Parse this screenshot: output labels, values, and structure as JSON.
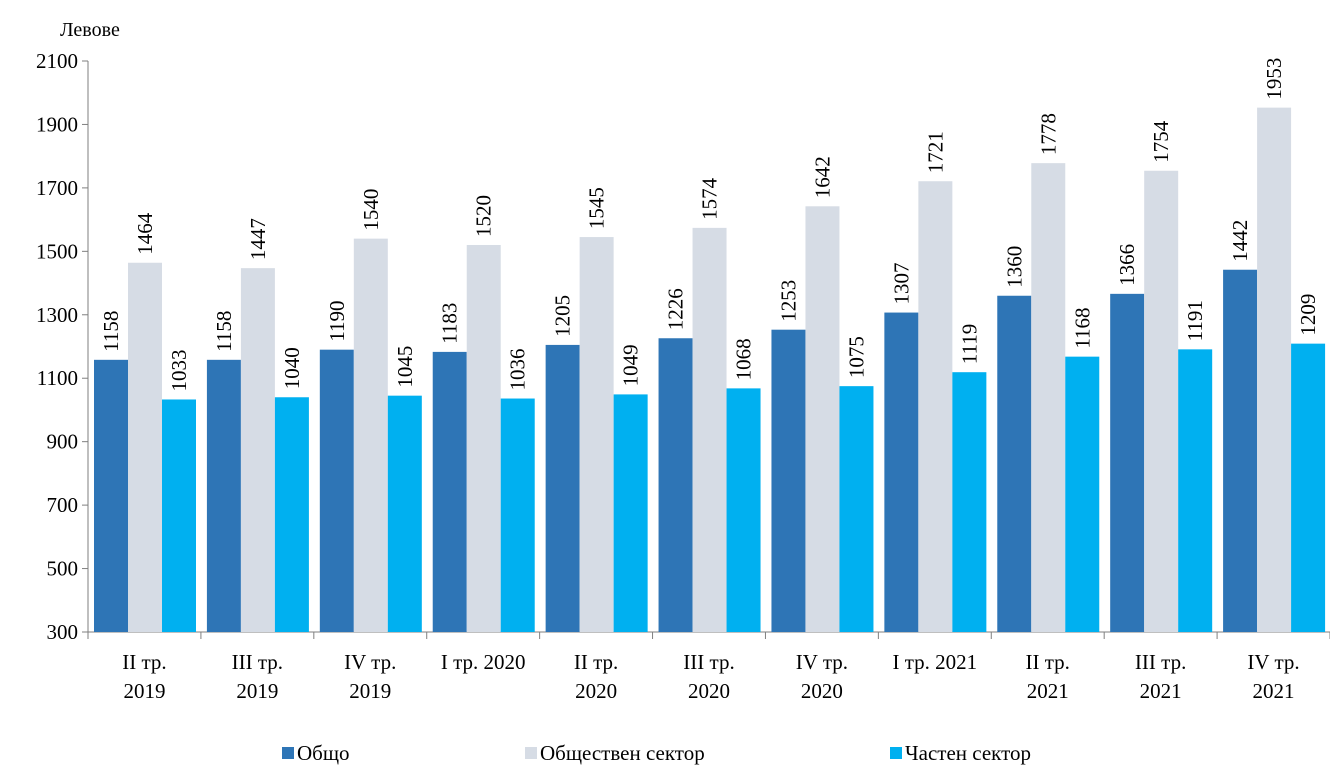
{
  "chart_data": {
    "type": "bar",
    "ylabel": "Левове",
    "ylim": [
      300,
      2100
    ],
    "yticks": [
      300,
      500,
      700,
      900,
      1100,
      1300,
      1500,
      1700,
      1900,
      2100
    ],
    "grid": false,
    "legend_position": "bottom",
    "categories": [
      [
        "II тр.",
        "2019"
      ],
      [
        "III тр.",
        "2019"
      ],
      [
        "IV тр.",
        "2019"
      ],
      [
        "I тр. 2020"
      ],
      [
        "II тр.",
        "2020"
      ],
      [
        "III тр.",
        "2020"
      ],
      [
        "IV тр.",
        "2020"
      ],
      [
        "I тр. 2021"
      ],
      [
        "II тр.",
        "2021"
      ],
      [
        "III тр.",
        "2021"
      ],
      [
        "IV тр.",
        "2021"
      ]
    ],
    "series": [
      {
        "name": "Общо",
        "color": "#2E75B6",
        "values": [
          1158,
          1158,
          1190,
          1183,
          1205,
          1226,
          1253,
          1307,
          1360,
          1366,
          1442
        ]
      },
      {
        "name": "Обществен сектор",
        "color": "#D6DCE5",
        "values": [
          1464,
          1447,
          1540,
          1520,
          1545,
          1574,
          1642,
          1721,
          1778,
          1754,
          1953
        ]
      },
      {
        "name": "Частен сектор",
        "color": "#00B0F0",
        "values": [
          1033,
          1040,
          1045,
          1036,
          1049,
          1068,
          1075,
          1119,
          1168,
          1191,
          1209
        ]
      }
    ]
  }
}
